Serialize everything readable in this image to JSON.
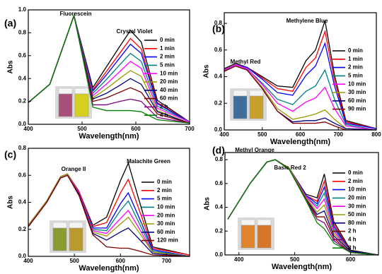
{
  "chart_data": [
    {
      "type": "line",
      "panel_label": "(a)",
      "annotations": [
        "Fluorescein",
        "Crystal Violet"
      ],
      "xlabel": "Wavelength(nm)",
      "ylabel": "Abs",
      "xlim": [
        400,
        700
      ],
      "xticks": [
        400,
        500,
        600,
        700
      ],
      "ylim": [
        0,
        1.0
      ],
      "yticks": [
        {
          "value": 0,
          "label": "0.0"
        },
        0.2,
        0.4,
        0.6,
        0.8,
        {
          "value": 1,
          "label": "1.0"
        }
      ],
      "legend": "upper right",
      "x": [
        400,
        440,
        470,
        485,
        500,
        520,
        545,
        570,
        590,
        610,
        640,
        700
      ],
      "series": [
        {
          "name": "0 min",
          "color": "#000000",
          "values": [
            0.19,
            0.35,
            0.75,
            0.95,
            0.68,
            0.32,
            0.5,
            0.68,
            0.82,
            0.72,
            0.21,
            0.02
          ]
        },
        {
          "name": "1 min",
          "color": "#ff0000",
          "values": [
            0.19,
            0.35,
            0.75,
            0.95,
            0.67,
            0.3,
            0.46,
            0.62,
            0.75,
            0.66,
            0.19,
            0.02
          ]
        },
        {
          "name": "2 min",
          "color": "#0000ff",
          "values": [
            0.19,
            0.35,
            0.75,
            0.95,
            0.67,
            0.29,
            0.43,
            0.58,
            0.7,
            0.62,
            0.18,
            0.02
          ]
        },
        {
          "name": "5 min",
          "color": "#008080",
          "values": [
            0.19,
            0.35,
            0.75,
            0.95,
            0.66,
            0.27,
            0.39,
            0.52,
            0.62,
            0.55,
            0.16,
            0.02
          ]
        },
        {
          "name": "10 min",
          "color": "#ff00ff",
          "values": [
            0.19,
            0.35,
            0.75,
            0.95,
            0.65,
            0.25,
            0.35,
            0.46,
            0.55,
            0.49,
            0.14,
            0.02
          ]
        },
        {
          "name": "20 min",
          "color": "#999900",
          "values": [
            0.19,
            0.35,
            0.75,
            0.95,
            0.65,
            0.23,
            0.31,
            0.4,
            0.47,
            0.42,
            0.12,
            0.01
          ]
        },
        {
          "name": "40 min",
          "color": "#000080",
          "values": [
            0.19,
            0.35,
            0.75,
            0.95,
            0.64,
            0.22,
            0.27,
            0.34,
            0.4,
            0.35,
            0.11,
            0.01
          ]
        },
        {
          "name": "60 min",
          "color": "#800000",
          "values": [
            0.19,
            0.35,
            0.75,
            0.95,
            0.63,
            0.2,
            0.23,
            0.28,
            0.32,
            0.28,
            0.09,
            0.01
          ]
        },
        {
          "name": "2 h",
          "color": "#800080",
          "values": [
            0.19,
            0.35,
            0.75,
            0.95,
            0.62,
            0.17,
            0.17,
            0.2,
            0.22,
            0.2,
            0.06,
            0.01
          ]
        },
        {
          "name": "4 h",
          "color": "#008000",
          "values": [
            0.19,
            0.35,
            0.75,
            0.95,
            0.61,
            0.15,
            0.12,
            0.12,
            0.12,
            0.11,
            0.04,
            0.01
          ]
        }
      ]
    },
    {
      "type": "line",
      "panel_label": "(b)",
      "annotations": [
        "Methylene Blue",
        "Methyl Red"
      ],
      "xlabel": "Wavelength(nm)",
      "ylabel": "Abs",
      "xlim": [
        400,
        800
      ],
      "xticks": [
        400,
        500,
        600,
        700,
        800
      ],
      "ylim": [
        0,
        0.88
      ],
      "yticks": [
        {
          "value": 0,
          "label": "0.0"
        },
        0.2,
        0.4,
        0.6,
        0.8
      ],
      "legend": "upper right",
      "x": [
        400,
        430,
        460,
        500,
        540,
        580,
        615,
        640,
        665,
        690,
        720,
        800
      ],
      "series": [
        {
          "name": "0 min",
          "color": "#000000",
          "values": [
            0.46,
            0.5,
            0.47,
            0.4,
            0.33,
            0.32,
            0.52,
            0.6,
            0.82,
            0.41,
            0.07,
            0.01
          ]
        },
        {
          "name": "1 min",
          "color": "#ff0000",
          "values": [
            0.45,
            0.49,
            0.47,
            0.39,
            0.31,
            0.29,
            0.47,
            0.54,
            0.74,
            0.37,
            0.06,
            0.01
          ]
        },
        {
          "name": "2 min",
          "color": "#0000ff",
          "values": [
            0.45,
            0.49,
            0.47,
            0.38,
            0.28,
            0.26,
            0.41,
            0.48,
            0.65,
            0.33,
            0.05,
            0.01
          ]
        },
        {
          "name": "5 min",
          "color": "#008080",
          "values": [
            0.45,
            0.49,
            0.46,
            0.35,
            0.23,
            0.19,
            0.29,
            0.33,
            0.45,
            0.23,
            0.04,
            0.0
          ]
        },
        {
          "name": "10 min",
          "color": "#ff00ff",
          "values": [
            0.45,
            0.49,
            0.46,
            0.34,
            0.2,
            0.14,
            0.21,
            0.24,
            0.32,
            0.16,
            0.03,
            0.0
          ]
        },
        {
          "name": "30 min",
          "color": "#999900",
          "values": [
            0.44,
            0.48,
            0.45,
            0.32,
            0.16,
            0.08,
            0.1,
            0.12,
            0.15,
            0.08,
            0.01,
            0.0
          ]
        },
        {
          "name": "60 min",
          "color": "#000080",
          "values": [
            0.44,
            0.48,
            0.45,
            0.31,
            0.14,
            0.06,
            0.07,
            0.07,
            0.09,
            0.05,
            0.01,
            0.0
          ]
        },
        {
          "name": "90 min",
          "color": "#800000",
          "values": [
            0.44,
            0.48,
            0.45,
            0.31,
            0.14,
            0.05,
            0.05,
            0.05,
            0.06,
            0.03,
            0.0,
            0.0
          ]
        }
      ]
    },
    {
      "type": "line",
      "panel_label": "(c)",
      "annotations": [
        "Orange II",
        "Malachite Green"
      ],
      "xlabel": "Wavelength(nm)",
      "ylabel": "Abs",
      "xlim": [
        400,
        750
      ],
      "xticks": [
        400,
        500,
        600,
        700
      ],
      "ylim": [
        0,
        0.8
      ],
      "yticks": [
        {
          "value": 0,
          "label": "0.0"
        },
        0.2,
        0.4,
        0.6,
        0.8
      ],
      "legend": "upper right",
      "x": [
        400,
        440,
        470,
        485,
        510,
        540,
        570,
        600,
        617,
        640,
        670,
        750
      ],
      "series": [
        {
          "name": "0 min",
          "color": "#000000",
          "values": [
            0.23,
            0.41,
            0.59,
            0.61,
            0.48,
            0.23,
            0.29,
            0.56,
            0.69,
            0.42,
            0.07,
            0.01
          ]
        },
        {
          "name": "2 min",
          "color": "#ff0000",
          "values": [
            0.23,
            0.41,
            0.59,
            0.61,
            0.48,
            0.22,
            0.25,
            0.47,
            0.57,
            0.35,
            0.06,
            0.01
          ]
        },
        {
          "name": "5 min",
          "color": "#0000ff",
          "values": [
            0.23,
            0.41,
            0.59,
            0.61,
            0.47,
            0.21,
            0.21,
            0.39,
            0.47,
            0.29,
            0.05,
            0.0
          ]
        },
        {
          "name": "10 min",
          "color": "#008080",
          "values": [
            0.23,
            0.41,
            0.59,
            0.61,
            0.47,
            0.2,
            0.19,
            0.34,
            0.41,
            0.25,
            0.04,
            0.0
          ]
        },
        {
          "name": "20 min",
          "color": "#ff00ff",
          "values": [
            0.23,
            0.41,
            0.59,
            0.61,
            0.47,
            0.19,
            0.17,
            0.28,
            0.34,
            0.21,
            0.03,
            0.0
          ]
        },
        {
          "name": "30 min",
          "color": "#999900",
          "values": [
            0.23,
            0.41,
            0.59,
            0.61,
            0.46,
            0.18,
            0.15,
            0.24,
            0.29,
            0.18,
            0.03,
            0.0
          ]
        },
        {
          "name": "60 min",
          "color": "#000080",
          "values": [
            0.22,
            0.4,
            0.58,
            0.6,
            0.46,
            0.17,
            0.12,
            0.18,
            0.21,
            0.13,
            0.02,
            0.0
          ]
        },
        {
          "name": "120 min",
          "color": "#800000",
          "values": [
            0.22,
            0.4,
            0.58,
            0.6,
            0.45,
            0.16,
            0.07,
            0.06,
            0.06,
            0.04,
            0.01,
            0.0
          ]
        }
      ]
    },
    {
      "type": "line",
      "panel_label": "(d)",
      "annotations": [
        "Methyl Orange",
        "Basic Red 2"
      ],
      "xlabel": "Wavelength(nm)",
      "ylabel": "Abs",
      "xlim": [
        375,
        650
      ],
      "xticks": [
        400,
        500,
        600
      ],
      "ylim": [
        0,
        0.86
      ],
      "yticks": [
        {
          "value": 0,
          "label": "0.0"
        },
        0.2,
        0.4,
        0.6,
        0.8
      ],
      "legend": "upper right",
      "x": [
        380,
        420,
        450,
        465,
        490,
        520,
        540,
        553,
        570,
        600,
        650
      ],
      "series": [
        {
          "name": "0 min",
          "color": "#000000",
          "values": [
            0.3,
            0.6,
            0.78,
            0.8,
            0.73,
            0.51,
            0.48,
            0.68,
            0.28,
            0.04,
            0.0
          ]
        },
        {
          "name": "2 min",
          "color": "#ff0000",
          "values": [
            0.3,
            0.6,
            0.78,
            0.8,
            0.73,
            0.5,
            0.45,
            0.62,
            0.26,
            0.03,
            0.0
          ]
        },
        {
          "name": "10 min",
          "color": "#0000ff",
          "values": [
            0.3,
            0.6,
            0.78,
            0.8,
            0.73,
            0.5,
            0.43,
            0.57,
            0.24,
            0.03,
            0.0
          ]
        },
        {
          "name": "20 min",
          "color": "#008080",
          "values": [
            0.3,
            0.6,
            0.78,
            0.8,
            0.73,
            0.49,
            0.41,
            0.52,
            0.22,
            0.03,
            0.0
          ]
        },
        {
          "name": "30 min",
          "color": "#ff00ff",
          "values": [
            0.3,
            0.6,
            0.78,
            0.8,
            0.73,
            0.49,
            0.39,
            0.47,
            0.2,
            0.03,
            0.0
          ]
        },
        {
          "name": "50 min",
          "color": "#999900",
          "values": [
            0.3,
            0.6,
            0.78,
            0.8,
            0.73,
            0.48,
            0.36,
            0.42,
            0.18,
            0.03,
            0.0
          ]
        },
        {
          "name": "80 min",
          "color": "#000080",
          "values": [
            0.3,
            0.6,
            0.78,
            0.8,
            0.72,
            0.47,
            0.34,
            0.37,
            0.16,
            0.03,
            0.0
          ]
        },
        {
          "name": "2 h",
          "color": "#800000",
          "values": [
            0.3,
            0.6,
            0.78,
            0.8,
            0.72,
            0.47,
            0.32,
            0.32,
            0.14,
            0.02,
            0.0
          ]
        },
        {
          "name": "4 h",
          "color": "#800080",
          "values": [
            0.3,
            0.6,
            0.78,
            0.8,
            0.72,
            0.46,
            0.3,
            0.27,
            0.12,
            0.02,
            0.0
          ]
        },
        {
          "name": "8 h",
          "color": "#008000",
          "values": [
            0.3,
            0.6,
            0.78,
            0.8,
            0.72,
            0.46,
            0.27,
            0.22,
            0.1,
            0.02,
            0.0
          ]
        }
      ]
    }
  ]
}
